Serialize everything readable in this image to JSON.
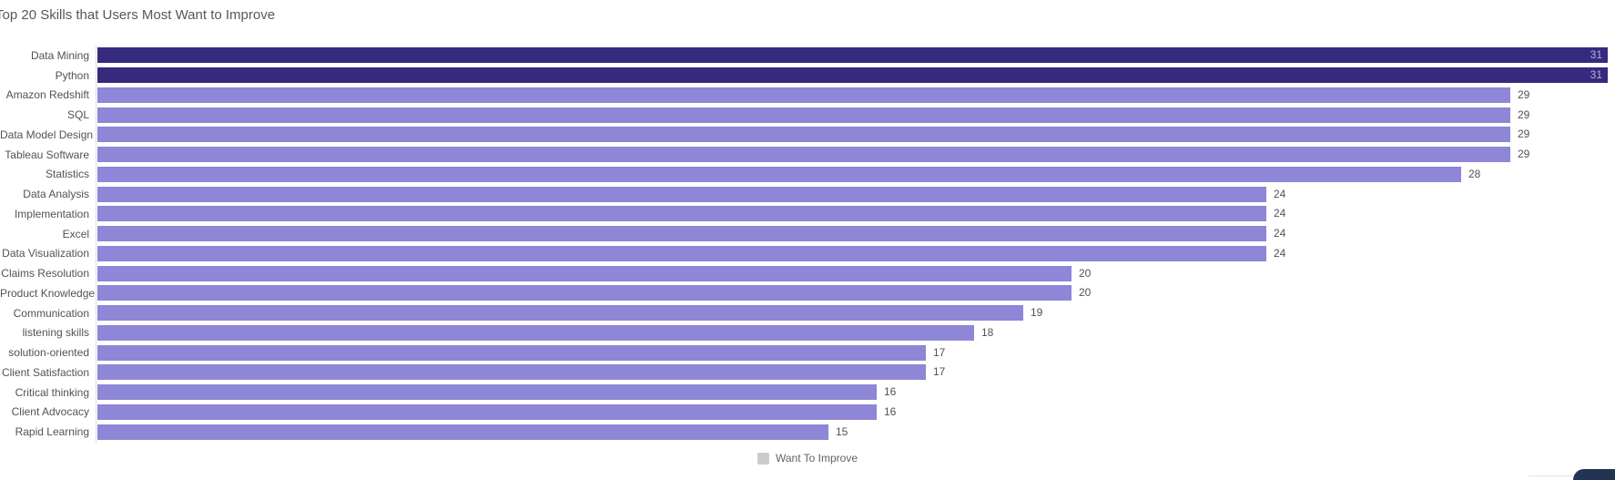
{
  "header": {
    "title": "Top 20 Skills that Users Most Want to Improve"
  },
  "chart_data": {
    "type": "bar",
    "orientation": "horizontal",
    "title": "Top 20 Skills that Users Most Want to Improve",
    "categories": [
      "Data Mining",
      "Python",
      "Amazon Redshift",
      "SQL",
      "Data Model Design",
      "Tableau Software",
      "Statistics",
      "Data Analysis",
      "Implementation",
      "Excel",
      "Data Visualization",
      "Claims Resolution",
      "Product Knowledge",
      "Communication",
      "listening skills",
      "solution-oriented",
      "Client Satisfaction",
      "Critical thinking",
      "Client Advocacy",
      "Rapid Learning"
    ],
    "series": [
      {
        "name": "Want To Improve",
        "values": [
          31,
          31,
          29,
          29,
          29,
          29,
          28,
          24,
          24,
          24,
          24,
          20,
          20,
          19,
          18,
          17,
          17,
          16,
          16,
          15
        ]
      }
    ],
    "values": [
      31,
      31,
      29,
      29,
      29,
      29,
      28,
      24,
      24,
      24,
      24,
      20,
      20,
      19,
      18,
      17,
      17,
      16,
      16,
      15
    ],
    "xlim": [
      0,
      31
    ],
    "grid": false,
    "highlighted_categories": [
      "Data Mining",
      "Python"
    ],
    "colors": {
      "bar_highlight": "#352a7e",
      "bar_default": "#8e86d6",
      "value_label_inside": "#b3b1cf",
      "value_label_outside": "#4f5257",
      "axis_line": "#dcdcdc",
      "title_text": "#54585f"
    },
    "legend": {
      "label": "Want To Improve",
      "position": "bottom-center",
      "marker_color": "#cccccc"
    },
    "value_label_placement": {
      "highlighted": "inside-end",
      "default": "outside-end"
    }
  },
  "widgets": {
    "bottom_right_button_color": "#233452"
  }
}
